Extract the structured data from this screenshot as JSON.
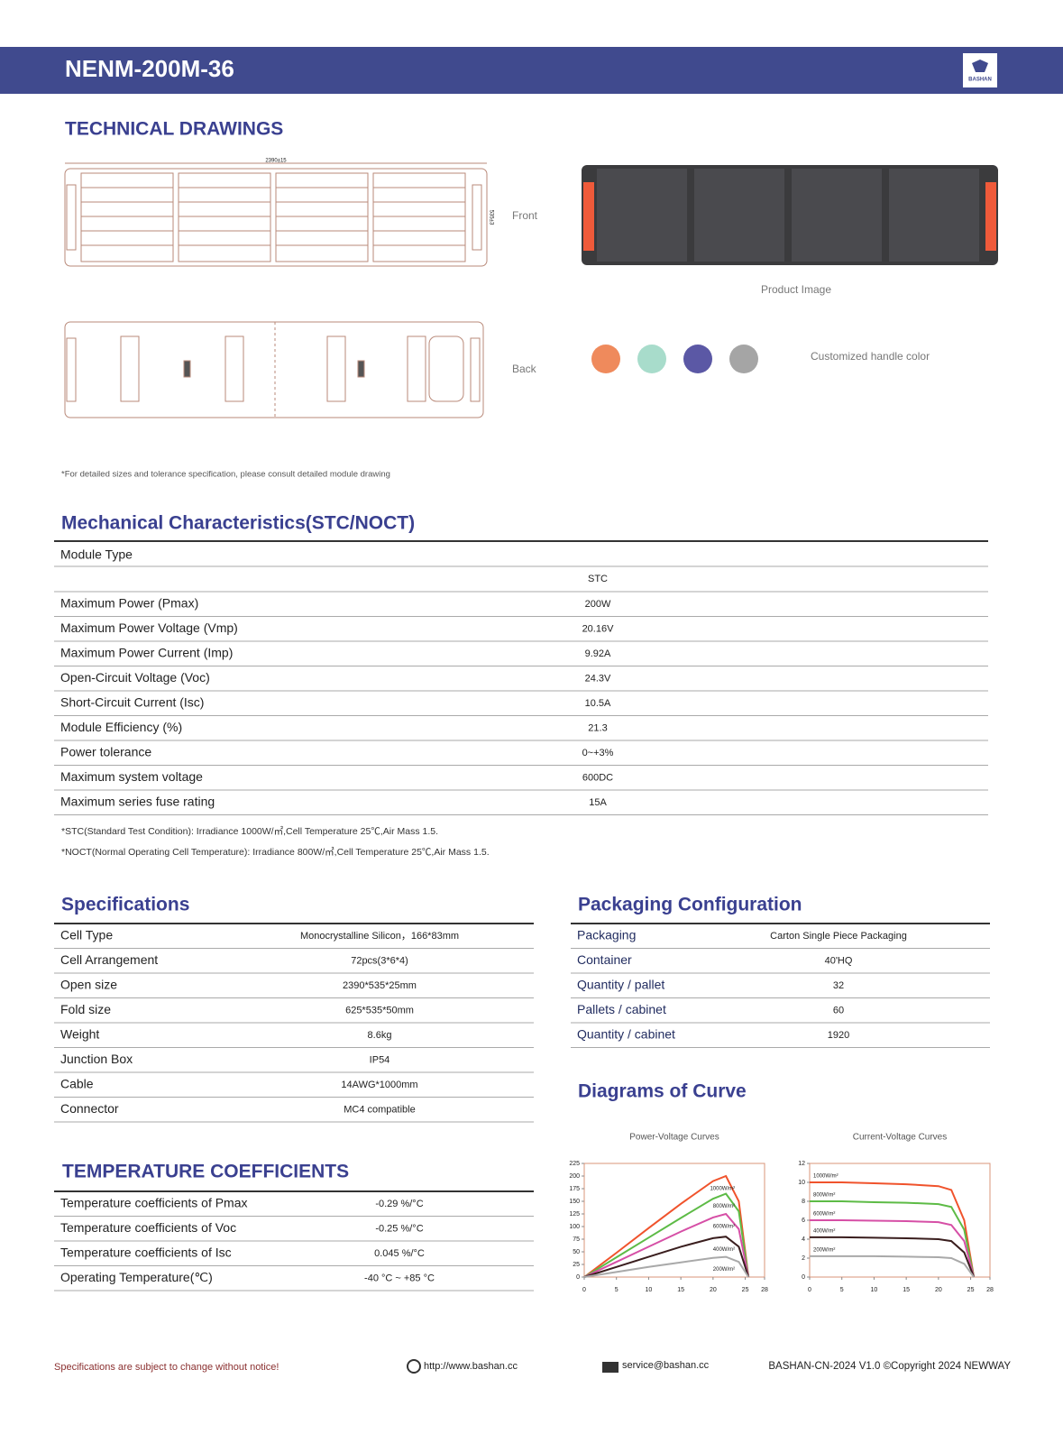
{
  "header": {
    "model": "NENM-200M-36",
    "logo": "BASHAN"
  },
  "technical_drawings": {
    "title": "TECHNICAL DRAWINGS",
    "length_dimension": "2390±15",
    "width_dimension": "535±3",
    "front_label": "Front",
    "back_label": "Back",
    "product_image_label": "Product Image",
    "handle_color_label": "Customized handle color",
    "handle_colors": [
      "#ef8a5c",
      "#a8dccb",
      "#5b58a5",
      "#a5a5a5"
    ],
    "note": "*For detailed sizes and tolerance specification, please consult detailed module drawing"
  },
  "mechanical": {
    "title": "Mechanical Characteristics(STC/NOCT)",
    "module_type_label": "Module Type",
    "column": "STC",
    "rows": [
      [
        "Maximum Power (Pmax)",
        "200W"
      ],
      [
        "Maximum Power Voltage (Vmp)",
        "20.16V"
      ],
      [
        "Maximum Power Current (Imp)",
        "9.92A"
      ],
      [
        "Open-Circuit Voltage (Voc)",
        "24.3V"
      ],
      [
        "Short-Circuit Current (Isc)",
        "10.5A"
      ],
      [
        "Module Efficiency  (%)",
        "21.3"
      ],
      [
        "Power tolerance",
        "0~+3%"
      ],
      [
        "Maximum system voltage",
        "600DC"
      ],
      [
        "Maximum series fuse rating",
        "15A"
      ]
    ],
    "notes": [
      "*STC(Standard Test Condition): Irradiance 1000W/㎡,Cell Temperature 25℃,Air Mass 1.5.",
      "*NOCT(Normal Operating Cell Temperature): Irradiance 800W/㎡,Cell Temperature 25℃,Air Mass 1.5."
    ]
  },
  "specifications": {
    "title": "Specifications",
    "rows": [
      [
        "Cell Type",
        "Monocrystalline Silicon，166*83mm"
      ],
      [
        "Cell Arrangement",
        "72pcs(3*6*4)"
      ],
      [
        "Open size",
        "2390*535*25mm"
      ],
      [
        "Fold size",
        "625*535*50mm"
      ],
      [
        "Weight",
        "8.6kg"
      ],
      [
        "Junction Box",
        "IP54"
      ],
      [
        "Cable",
        "14AWG*1000mm"
      ],
      [
        "Connector",
        "MC4 compatible"
      ]
    ]
  },
  "packaging": {
    "title": "Packaging Configuration",
    "rows": [
      [
        "Packaging",
        "Carton Single Piece Packaging"
      ],
      [
        "Container",
        "40'HQ"
      ],
      [
        "Quantity / pallet",
        "32"
      ],
      [
        "Pallets / cabinet",
        "60"
      ],
      [
        "Quantity / cabinet",
        "1920"
      ]
    ]
  },
  "temperature": {
    "title": "TEMPERATURE COEFFICIENTS",
    "rows": [
      [
        "Temperature coefficients of Pmax",
        "-0.29 %/°C"
      ],
      [
        "Temperature coefficients of Voc",
        "-0.25 %/°C"
      ],
      [
        "Temperature coefficients of Isc",
        "0.045 %/°C"
      ],
      [
        "Operating Temperature(℃)",
        "-40 °C ~ +85 °C"
      ]
    ]
  },
  "curves": {
    "title": "Diagrams of Curve",
    "charts": [
      {
        "type": "line",
        "title": "Power-Voltage Curves",
        "x": [
          0,
          5,
          10,
          15,
          20,
          22,
          24,
          25.5
        ],
        "xlim": [
          0,
          28
        ],
        "xticks": [
          0,
          5,
          10,
          15,
          20,
          25,
          28
        ],
        "ylim": [
          0,
          225
        ],
        "yticks": [
          0,
          25,
          50,
          75,
          100,
          125,
          150,
          175,
          200,
          225
        ],
        "series": [
          {
            "name": "1000W/m²",
            "color": "#f0532c",
            "values": [
              0,
              48,
              97,
              145,
              190,
              200,
              150,
              0
            ]
          },
          {
            "name": "800W/m²",
            "color": "#5dbb46",
            "values": [
              0,
              39,
              78,
              117,
              155,
              165,
              130,
              0
            ]
          },
          {
            "name": "600W/m²",
            "color": "#d64fa6",
            "values": [
              0,
              30,
              60,
              90,
              118,
              125,
              95,
              0
            ]
          },
          {
            "name": "400W/m²",
            "color": "#3a1e1e",
            "values": [
              0,
              20,
              40,
              60,
              77,
              80,
              60,
              0
            ]
          },
          {
            "name": "200W/m²",
            "color": "#a9a9a9",
            "values": [
              0,
              10,
              20,
              29,
              38,
              40,
              30,
              0
            ]
          }
        ]
      },
      {
        "type": "line",
        "title": "Current-Voltage Curves",
        "x": [
          0,
          5,
          10,
          15,
          20,
          22,
          24,
          25.5
        ],
        "xlim": [
          0,
          28
        ],
        "xticks": [
          0,
          5,
          10,
          15,
          20,
          25,
          28
        ],
        "ylim": [
          0,
          12
        ],
        "yticks": [
          0,
          2,
          4,
          6,
          8,
          10,
          12
        ],
        "series": [
          {
            "name": "1000W/m²",
            "color": "#f0532c",
            "values": [
              10,
              10,
              9.9,
              9.8,
              9.6,
              9.2,
              6,
              0
            ]
          },
          {
            "name": "800W/m²",
            "color": "#5dbb46",
            "values": [
              8,
              8,
              7.9,
              7.85,
              7.7,
              7.4,
              5,
              0
            ]
          },
          {
            "name": "600W/m²",
            "color": "#d64fa6",
            "values": [
              6,
              6,
              5.95,
              5.9,
              5.8,
              5.5,
              3.8,
              0
            ]
          },
          {
            "name": "400W/m²",
            "color": "#3a1e1e",
            "values": [
              4.2,
              4.2,
              4.15,
              4.1,
              4,
              3.8,
              2.6,
              0
            ]
          },
          {
            "name": "200W/m²",
            "color": "#a9a9a9",
            "values": [
              2.2,
              2.2,
              2.2,
              2.15,
              2.1,
              2,
              1.4,
              0
            ]
          }
        ]
      }
    ]
  },
  "footer": {
    "notice": "Specifications are subject to change without notice!",
    "website": "http://www.bashan.cc",
    "email": "service@bashan.cc",
    "copyright": "BASHAN-CN-2024 V1.0 ©Copyright 2024 NEWWAY"
  }
}
